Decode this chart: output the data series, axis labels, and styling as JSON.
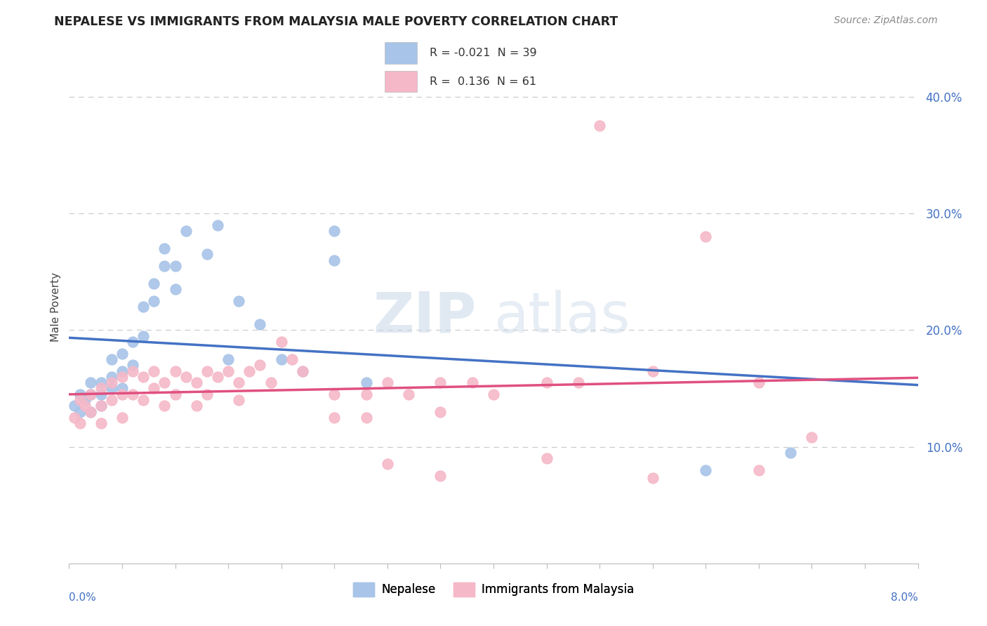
{
  "title": "NEPALESE VS IMMIGRANTS FROM MALAYSIA MALE POVERTY CORRELATION CHART",
  "source": "Source: ZipAtlas.com",
  "ylabel": "Male Poverty",
  "y_tick_labels": [
    "10.0%",
    "20.0%",
    "30.0%",
    "40.0%"
  ],
  "y_tick_values": [
    0.1,
    0.2,
    0.3,
    0.4
  ],
  "xlim": [
    0.0,
    0.08
  ],
  "ylim": [
    0.0,
    0.44
  ],
  "legend_r1_text": "R = -0.021  N = 39",
  "legend_r2_text": "R =  0.136  N = 61",
  "nepalese_color": "#a8c4e8",
  "malaysia_color": "#f5b8c8",
  "trendline_nepalese_color": "#4472c4",
  "trendline_malaysia_color": "#e05080",
  "background_color": "#ffffff",
  "nepalese_x": [
    0.0005,
    0.001,
    0.001,
    0.0015,
    0.002,
    0.002,
    0.002,
    0.003,
    0.003,
    0.003,
    0.004,
    0.004,
    0.004,
    0.005,
    0.005,
    0.005,
    0.006,
    0.006,
    0.007,
    0.007,
    0.008,
    0.008,
    0.009,
    0.009,
    0.01,
    0.01,
    0.011,
    0.013,
    0.014,
    0.015,
    0.016,
    0.018,
    0.02,
    0.022,
    0.025,
    0.025,
    0.028,
    0.068,
    0.06
  ],
  "nepalese_y": [
    0.135,
    0.145,
    0.13,
    0.14,
    0.155,
    0.145,
    0.13,
    0.155,
    0.145,
    0.135,
    0.175,
    0.16,
    0.15,
    0.18,
    0.165,
    0.15,
    0.19,
    0.17,
    0.22,
    0.195,
    0.24,
    0.225,
    0.255,
    0.27,
    0.255,
    0.235,
    0.285,
    0.265,
    0.29,
    0.175,
    0.225,
    0.205,
    0.175,
    0.165,
    0.285,
    0.26,
    0.155,
    0.095,
    0.08
  ],
  "malaysia_x": [
    0.0005,
    0.001,
    0.001,
    0.0015,
    0.002,
    0.002,
    0.003,
    0.003,
    0.003,
    0.004,
    0.004,
    0.005,
    0.005,
    0.005,
    0.006,
    0.006,
    0.007,
    0.007,
    0.008,
    0.008,
    0.009,
    0.009,
    0.01,
    0.01,
    0.011,
    0.012,
    0.012,
    0.013,
    0.013,
    0.014,
    0.015,
    0.016,
    0.016,
    0.017,
    0.018,
    0.019,
    0.02,
    0.021,
    0.022,
    0.025,
    0.025,
    0.028,
    0.028,
    0.03,
    0.032,
    0.035,
    0.035,
    0.038,
    0.04,
    0.045,
    0.048,
    0.05,
    0.055,
    0.06,
    0.065,
    0.07,
    0.03,
    0.035,
    0.045,
    0.055,
    0.065
  ],
  "malaysia_y": [
    0.125,
    0.14,
    0.12,
    0.135,
    0.145,
    0.13,
    0.15,
    0.135,
    0.12,
    0.155,
    0.14,
    0.16,
    0.145,
    0.125,
    0.165,
    0.145,
    0.16,
    0.14,
    0.165,
    0.15,
    0.155,
    0.135,
    0.165,
    0.145,
    0.16,
    0.155,
    0.135,
    0.165,
    0.145,
    0.16,
    0.165,
    0.155,
    0.14,
    0.165,
    0.17,
    0.155,
    0.19,
    0.175,
    0.165,
    0.145,
    0.125,
    0.145,
    0.125,
    0.155,
    0.145,
    0.155,
    0.13,
    0.155,
    0.145,
    0.155,
    0.155,
    0.375,
    0.165,
    0.28,
    0.155,
    0.108,
    0.085,
    0.075,
    0.09,
    0.073,
    0.08
  ]
}
